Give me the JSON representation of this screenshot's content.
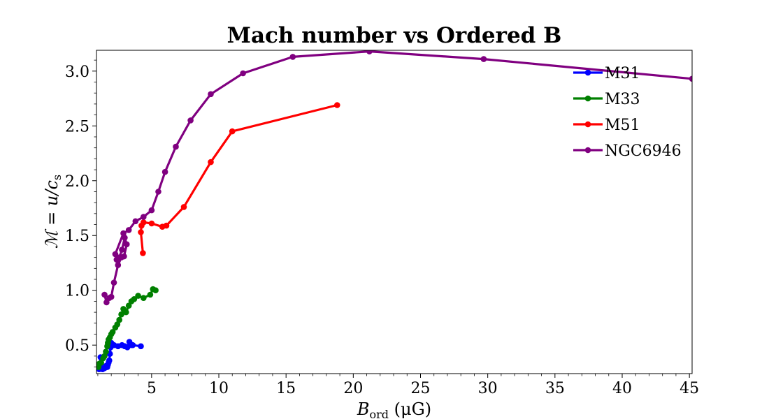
{
  "chart_data": {
    "type": "line",
    "title": "Mach number vs Ordered B",
    "xlabel": {
      "main": "B",
      "sub": "ord",
      "rest": " (μG)"
    },
    "ylabel": {
      "main": "ℳ = u/c",
      "sub": "s"
    },
    "xlim": [
      0.9,
      45.2
    ],
    "ylim": [
      0.24,
      3.19
    ],
    "xticks": [
      5,
      10,
      15,
      20,
      25,
      30,
      35,
      40,
      45
    ],
    "yticks": [
      0.5,
      1.0,
      1.5,
      2.0,
      2.5,
      3.0
    ],
    "xtick_labels": [
      "5",
      "10",
      "15",
      "20",
      "25",
      "30",
      "35",
      "40",
      "45"
    ],
    "ytick_labels": [
      "0.5",
      "1.0",
      "1.5",
      "2.0",
      "2.5",
      "3.0"
    ],
    "grid": false,
    "legend_position": "top-right",
    "series": [
      {
        "name": "M31",
        "color": "#0000ff",
        "x": [
          1.1,
          1.2,
          1.35,
          1.5,
          1.6,
          1.7,
          1.75,
          1.8,
          1.85,
          1.9,
          1.95,
          2.0,
          2.2,
          2.5,
          2.8,
          3.0,
          3.2,
          3.35,
          3.5,
          3.6,
          4.2
        ],
        "y": [
          0.28,
          0.39,
          0.28,
          0.29,
          0.31,
          0.3,
          0.32,
          0.34,
          0.36,
          0.42,
          0.48,
          0.52,
          0.5,
          0.49,
          0.5,
          0.49,
          0.48,
          0.53,
          0.5,
          0.5,
          0.49
        ]
      },
      {
        "name": "M33",
        "color": "#008000",
        "x": [
          1.05,
          1.1,
          1.25,
          1.4,
          1.5,
          1.6,
          1.7,
          1.75,
          1.8,
          1.9,
          2.0,
          2.1,
          2.3,
          2.45,
          2.6,
          2.75,
          2.9,
          3.1,
          3.3,
          3.5,
          3.7,
          4.0,
          4.4,
          4.9,
          5.1,
          5.3
        ],
        "y": [
          0.3,
          0.33,
          0.34,
          0.38,
          0.4,
          0.44,
          0.49,
          0.52,
          0.55,
          0.57,
          0.6,
          0.62,
          0.66,
          0.69,
          0.73,
          0.78,
          0.83,
          0.8,
          0.86,
          0.9,
          0.92,
          0.95,
          0.93,
          0.96,
          1.01,
          1.0
        ]
      },
      {
        "name": "M51",
        "color": "#ff0000",
        "x": [
          4.35,
          4.2,
          4.25,
          4.4,
          5.0,
          5.8,
          6.1,
          7.4,
          9.4,
          11.0,
          18.8
        ],
        "y": [
          1.34,
          1.53,
          1.59,
          1.62,
          1.61,
          1.58,
          1.59,
          1.76,
          2.17,
          2.45,
          2.69
        ],
        "show_in_legend": true
      },
      {
        "name": "NGC6946",
        "color": "#800080",
        "x": [
          1.5,
          1.65,
          1.85,
          2.0,
          2.2,
          2.5,
          2.75,
          2.95,
          3.15,
          3.0,
          2.8,
          2.6,
          2.4,
          2.3,
          2.9,
          3.3,
          3.8,
          4.4,
          5.0,
          5.5,
          6.0,
          6.8,
          7.9,
          9.4,
          11.8,
          15.5,
          21.2,
          29.7,
          45.2
        ],
        "y": [
          0.96,
          0.89,
          0.93,
          0.94,
          1.07,
          1.23,
          1.3,
          1.31,
          1.42,
          1.48,
          1.37,
          1.3,
          1.28,
          1.33,
          1.52,
          1.55,
          1.63,
          1.67,
          1.73,
          1.9,
          2.08,
          2.31,
          2.55,
          2.79,
          2.98,
          3.13,
          3.18,
          3.11,
          2.93
        ]
      }
    ]
  }
}
